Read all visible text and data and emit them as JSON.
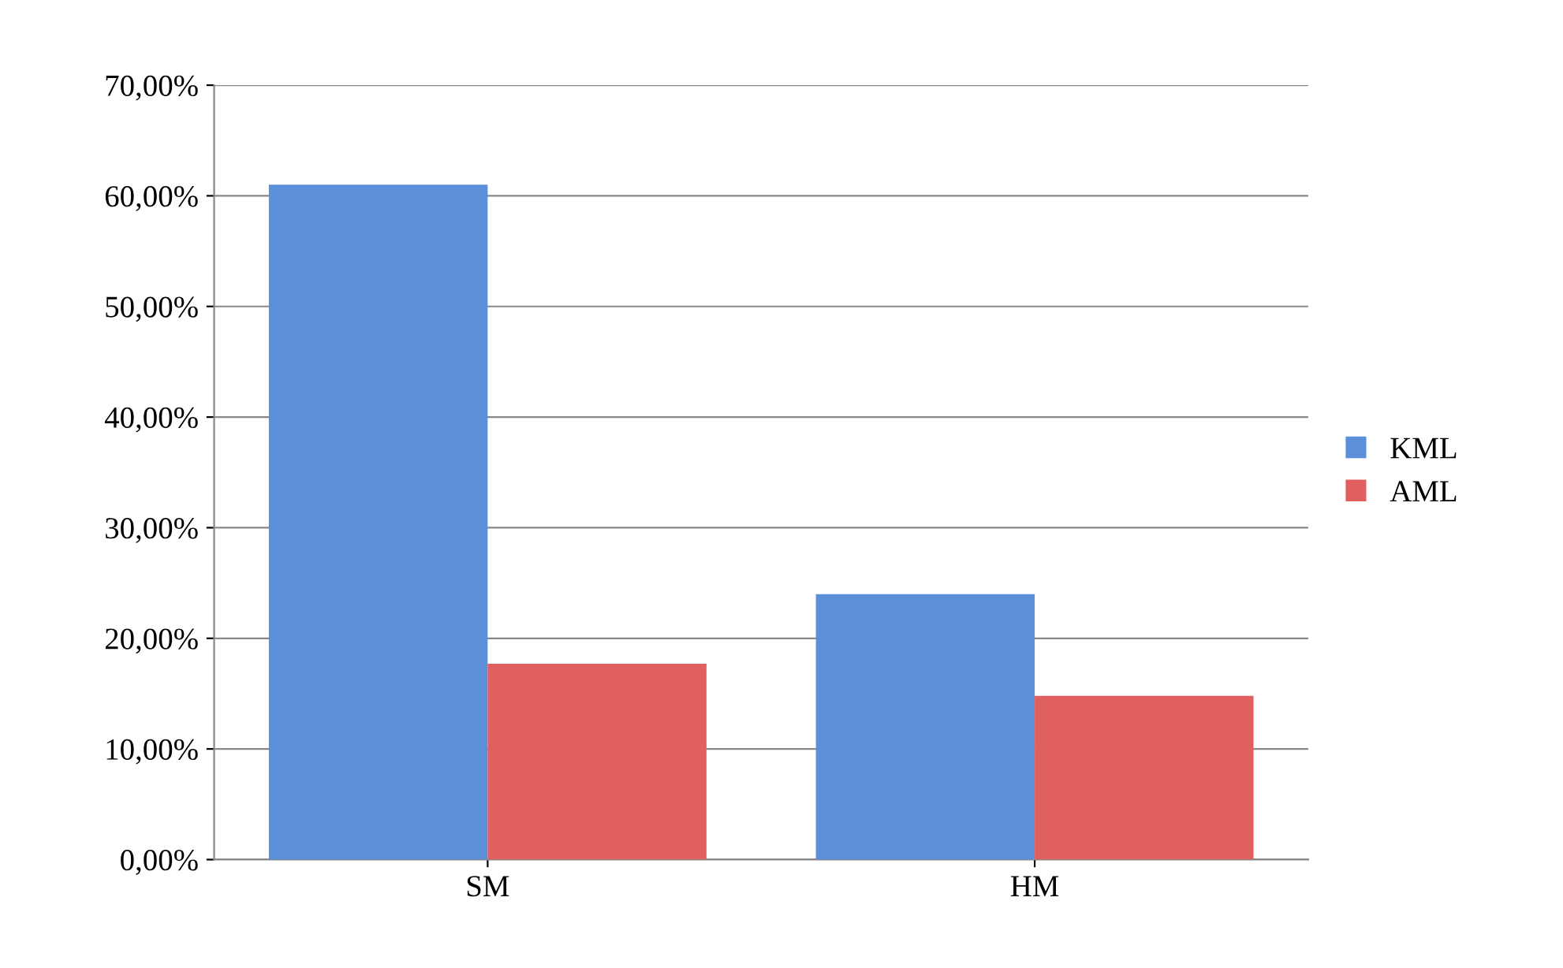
{
  "chart_data": {
    "type": "bar",
    "categories": [
      "SM",
      "HM"
    ],
    "series": [
      {
        "name": "KML",
        "color": "#5b8fd9",
        "values": [
          61,
          24
        ]
      },
      {
        "name": "AML",
        "color": "#e06060",
        "values": [
          17.7,
          14.8
        ]
      }
    ],
    "ylim": [
      0,
      70
    ],
    "yticks": [
      {
        "value": 0,
        "label": "0,00%"
      },
      {
        "value": 10,
        "label": "10,00%"
      },
      {
        "value": 20,
        "label": "20,00%"
      },
      {
        "value": 30,
        "label": "30,00%"
      },
      {
        "value": 40,
        "label": "40,00%"
      },
      {
        "value": 50,
        "label": "50,00%"
      },
      {
        "value": 60,
        "label": "60,00%"
      },
      {
        "value": 70,
        "label": "70,00%"
      }
    ],
    "grid": "y",
    "legend": "right"
  }
}
